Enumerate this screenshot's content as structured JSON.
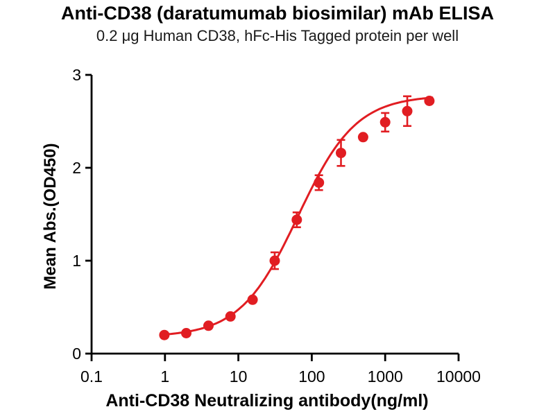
{
  "chart_data": {
    "type": "scatter",
    "title": "Anti-CD38 (daratumumab biosimilar) mAb ELISA",
    "subtitle": "0.2 μg Human CD38, hFc-His Tagged protein per well",
    "xlabel": "Anti-CD38 Neutralizing antibody(ng/ml)",
    "ylabel": "Mean Abs.(OD450)",
    "x_scale": "log10",
    "xlim": [
      0.1,
      10000
    ],
    "ylim": [
      0,
      3
    ],
    "x_ticks": [
      0.1,
      1,
      10,
      100,
      1000,
      10000
    ],
    "x_tick_labels": [
      "0.1",
      "1",
      "10",
      "100",
      "1000",
      "10000"
    ],
    "y_ticks": [
      0,
      1,
      2,
      3
    ],
    "y_tick_labels": [
      "0",
      "1",
      "2",
      "3"
    ],
    "grid": false,
    "legend": "none",
    "marker_color": "#e11d22",
    "axis_color": "#000000",
    "series": [
      {
        "name": "Anti-CD38 neutralizing antibody",
        "x": [
          0.98,
          1.95,
          3.91,
          7.81,
          15.63,
          31.25,
          62.5,
          125,
          250,
          500,
          1000,
          2000,
          4000
        ],
        "y": [
          0.2,
          0.22,
          0.3,
          0.4,
          0.58,
          1.0,
          1.44,
          1.84,
          2.16,
          2.33,
          2.49,
          2.61,
          2.72
        ],
        "y_err": [
          0,
          0,
          0,
          0,
          0,
          0.09,
          0.08,
          0.08,
          0.14,
          0,
          0.1,
          0.16,
          0
        ],
        "fit": {
          "model": "4PL",
          "bottom": 0.18,
          "top": 2.78,
          "ec50": 65,
          "hill": 1.1,
          "x_range": [
            0.98,
            4500
          ]
        }
      }
    ]
  }
}
